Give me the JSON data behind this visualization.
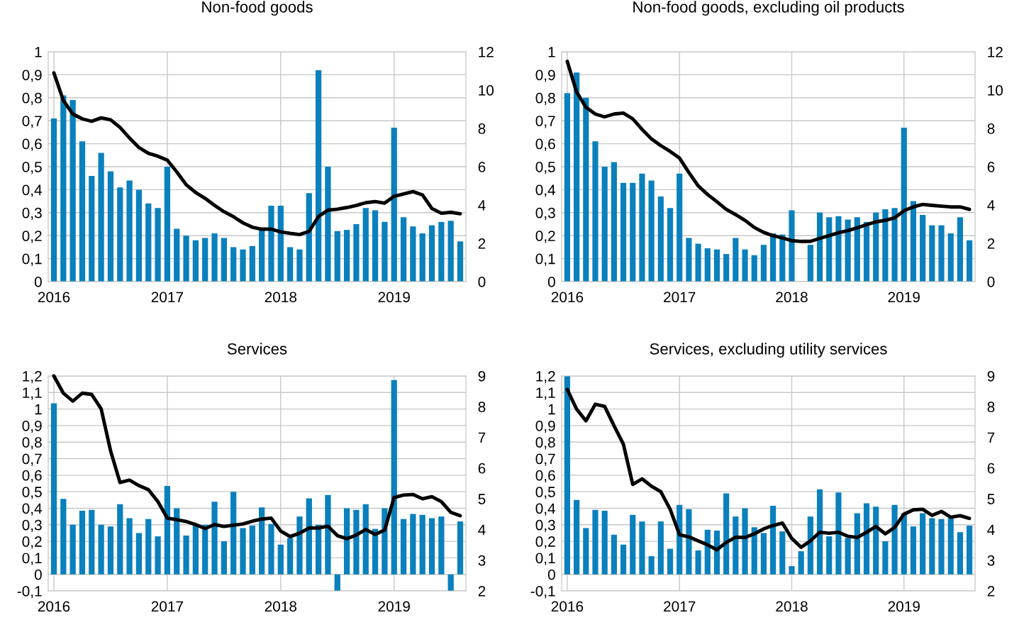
{
  "chart_data": [
    {
      "type": "bar",
      "title": "Non-food goods",
      "categories": [
        "2016",
        null,
        null,
        null,
        null,
        null,
        null,
        null,
        null,
        null,
        null,
        null,
        "2017",
        null,
        null,
        null,
        null,
        null,
        null,
        null,
        null,
        null,
        null,
        null,
        "2018",
        null,
        null,
        null,
        null,
        null,
        null,
        null,
        null,
        null,
        null,
        null,
        "2019",
        null,
        null,
        null,
        null,
        null,
        null,
        null
      ],
      "series": [
        {
          "type": "bar",
          "color": "#0a80bd",
          "values": [
            0.71,
            0.81,
            0.79,
            0.61,
            0.46,
            0.56,
            0.48,
            0.41,
            0.44,
            0.4,
            0.34,
            0.32,
            0.5,
            0.23,
            0.2,
            0.18,
            0.19,
            0.21,
            0.19,
            0.15,
            0.14,
            0.155,
            0.23,
            0.33,
            0.33,
            0.15,
            0.14,
            0.385,
            0.92,
            0.5,
            0.22,
            0.225,
            0.25,
            0.32,
            0.31,
            0.26,
            0.67,
            0.28,
            0.24,
            0.21,
            0.245,
            0.26,
            0.265,
            0.175
          ]
        },
        {
          "type": "line",
          "axis": "y2",
          "color": "#000000",
          "values": [
            10.9,
            9.46,
            8.75,
            8.5,
            8.37,
            8.55,
            8.45,
            8.05,
            7.5,
            7.0,
            6.7,
            6.55,
            6.34,
            5.73,
            5.06,
            4.65,
            4.35,
            3.98,
            3.65,
            3.39,
            3.07,
            2.84,
            2.74,
            2.74,
            2.6,
            2.52,
            2.46,
            2.62,
            3.4,
            3.73,
            3.78,
            3.87,
            3.98,
            4.12,
            4.18,
            4.1,
            4.45,
            4.58,
            4.7,
            4.53,
            3.82,
            3.57,
            3.62,
            3.54
          ]
        }
      ],
      "ylim": [
        0,
        1
      ],
      "yticks": [
        0,
        {
          "value": 0.1,
          "label": "0,1"
        },
        {
          "value": 0.2,
          "label": "0,2"
        },
        {
          "value": 0.3,
          "label": "0,3"
        },
        {
          "value": 0.4,
          "label": "0,4"
        },
        {
          "value": 0.5,
          "label": "0,5"
        },
        {
          "value": 0.6,
          "label": "0,6"
        },
        {
          "value": 0.7,
          "label": "0,7"
        },
        {
          "value": 0.8,
          "label": "0,8"
        },
        {
          "value": 0.9,
          "label": "0,9"
        },
        1
      ],
      "y2lim": [
        0,
        12
      ],
      "y2ticks": [
        0,
        2,
        4,
        6,
        8,
        10,
        12
      ],
      "grid": true
    },
    {
      "type": "bar",
      "title": "Non-food goods, excluding oil products",
      "categories": [
        "2016",
        null,
        null,
        null,
        null,
        null,
        null,
        null,
        null,
        null,
        null,
        null,
        "2017",
        null,
        null,
        null,
        null,
        null,
        null,
        null,
        null,
        null,
        null,
        null,
        "2018",
        null,
        null,
        null,
        null,
        null,
        null,
        null,
        null,
        null,
        null,
        null,
        "2019",
        null,
        null,
        null,
        null,
        null,
        null,
        null
      ],
      "series": [
        {
          "type": "bar",
          "color": "#0a80bd",
          "values": [
            0.82,
            0.91,
            0.8,
            0.61,
            0.5,
            0.52,
            0.43,
            0.43,
            0.47,
            0.44,
            0.37,
            0.32,
            0.47,
            0.19,
            0.165,
            0.145,
            0.14,
            0.12,
            0.19,
            0.14,
            0.115,
            0.16,
            0.21,
            0.205,
            0.31,
            null,
            0.16,
            0.3,
            0.28,
            0.285,
            0.27,
            0.28,
            0.26,
            0.3,
            0.315,
            0.32,
            0.67,
            0.35,
            0.29,
            0.245,
            0.245,
            0.21,
            0.28,
            0.18
          ]
        },
        {
          "type": "line",
          "axis": "y2",
          "color": "#000000",
          "values": [
            11.5,
            9.9,
            9.1,
            8.75,
            8.6,
            8.75,
            8.8,
            8.5,
            7.95,
            7.45,
            7.1,
            6.8,
            6.45,
            5.7,
            5.0,
            4.55,
            4.17,
            3.77,
            3.5,
            3.2,
            2.83,
            2.57,
            2.4,
            2.28,
            2.14,
            2.1,
            2.1,
            2.26,
            2.4,
            2.55,
            2.66,
            2.81,
            2.97,
            3.12,
            3.2,
            3.33,
            3.7,
            3.9,
            4.03,
            3.98,
            3.94,
            3.9,
            3.9,
            3.77
          ]
        }
      ],
      "ylim": [
        0,
        1
      ],
      "yticks": [
        0,
        {
          "value": 0.1,
          "label": "0,1"
        },
        {
          "value": 0.2,
          "label": "0,2"
        },
        {
          "value": 0.3,
          "label": "0,3"
        },
        {
          "value": 0.4,
          "label": "0,4"
        },
        {
          "value": 0.5,
          "label": "0,5"
        },
        {
          "value": 0.6,
          "label": "0,6"
        },
        {
          "value": 0.7,
          "label": "0,7"
        },
        {
          "value": 0.8,
          "label": "0,8"
        },
        {
          "value": 0.9,
          "label": "0,9"
        },
        1
      ],
      "y2lim": [
        0,
        12
      ],
      "y2ticks": [
        0,
        2,
        4,
        6,
        8,
        10,
        12
      ],
      "grid": true
    },
    {
      "type": "bar",
      "title": "Services",
      "categories": [
        "2016",
        null,
        null,
        null,
        null,
        null,
        null,
        null,
        null,
        null,
        null,
        null,
        "2017",
        null,
        null,
        null,
        null,
        null,
        null,
        null,
        null,
        null,
        null,
        null,
        "2018",
        null,
        null,
        null,
        null,
        null,
        null,
        null,
        null,
        null,
        null,
        null,
        "2019",
        null,
        null,
        null,
        null,
        null,
        null,
        null
      ],
      "series": [
        {
          "type": "bar",
          "color": "#0a80bd",
          "values": [
            1.035,
            0.457,
            0.3,
            0.385,
            0.39,
            0.3,
            0.29,
            0.425,
            0.34,
            0.25,
            0.335,
            0.23,
            0.535,
            0.4,
            0.235,
            0.3,
            0.3,
            0.44,
            0.2,
            0.5,
            0.28,
            0.295,
            0.405,
            0.305,
            0.18,
            0.22,
            0.35,
            0.46,
            0.3,
            0.48,
            -0.1,
            0.4,
            0.39,
            0.425,
            0.275,
            0.4,
            1.175,
            0.335,
            0.365,
            0.36,
            0.34,
            0.35,
            -0.1,
            0.32
          ]
        },
        {
          "type": "line",
          "axis": "y2",
          "color": "#000000",
          "values": [
            9.0,
            8.44,
            8.18,
            8.44,
            8.4,
            7.93,
            6.56,
            5.53,
            5.61,
            5.43,
            5.3,
            4.91,
            4.37,
            4.32,
            4.26,
            4.16,
            4.03,
            4.16,
            4.1,
            4.14,
            4.18,
            4.27,
            4.34,
            4.37,
            3.95,
            3.77,
            3.88,
            4.05,
            4.05,
            4.11,
            3.8,
            3.7,
            3.82,
            4.0,
            3.84,
            3.98,
            5.04,
            5.12,
            5.14,
            5.0,
            5.07,
            4.91,
            4.56,
            4.45
          ]
        }
      ],
      "ylim": [
        -0.1,
        1.2
      ],
      "yticks": [
        {
          "value": -0.1,
          "label": "-0,1"
        },
        0,
        {
          "value": 0.1,
          "label": "0,1"
        },
        {
          "value": 0.2,
          "label": "0,2"
        },
        {
          "value": 0.3,
          "label": "0,3"
        },
        {
          "value": 0.4,
          "label": "0,4"
        },
        {
          "value": 0.5,
          "label": "0,5"
        },
        {
          "value": 0.6,
          "label": "0,6"
        },
        {
          "value": 0.7,
          "label": "0,7"
        },
        {
          "value": 0.8,
          "label": "0,8"
        },
        {
          "value": 0.9,
          "label": "0,9"
        },
        1,
        {
          "value": 1.1,
          "label": "1,1"
        },
        {
          "value": 1.2,
          "label": "1,2"
        }
      ],
      "y2lim": [
        2,
        9
      ],
      "y2ticks": [
        2,
        3,
        4,
        5,
        6,
        7,
        8,
        9
      ],
      "grid": true
    },
    {
      "type": "bar",
      "title": "Services, excluding utility services",
      "categories": [
        "2016",
        null,
        null,
        null,
        null,
        null,
        null,
        null,
        null,
        null,
        null,
        null,
        "2017",
        null,
        null,
        null,
        null,
        null,
        null,
        null,
        null,
        null,
        null,
        null,
        "2018",
        null,
        null,
        null,
        null,
        null,
        null,
        null,
        null,
        null,
        null,
        null,
        "2019",
        null,
        null,
        null,
        null,
        null,
        null,
        null
      ],
      "series": [
        {
          "type": "bar",
          "color": "#0a80bd",
          "values": [
            1.2,
            0.45,
            0.28,
            0.39,
            0.385,
            0.24,
            0.18,
            0.36,
            0.32,
            0.11,
            0.32,
            0.155,
            0.42,
            0.395,
            0.145,
            0.27,
            0.265,
            0.49,
            0.35,
            0.4,
            0.285,
            0.25,
            0.415,
            0.26,
            0.05,
            0.14,
            0.35,
            0.515,
            0.23,
            0.495,
            0.22,
            0.37,
            0.43,
            0.41,
            0.2,
            0.42,
            0.37,
            0.29,
            0.37,
            0.34,
            0.335,
            0.34,
            0.255,
            0.295
          ]
        },
        {
          "type": "line",
          "axis": "y2",
          "color": "#000000",
          "values": [
            8.56,
            7.92,
            7.54,
            8.08,
            8.01,
            7.38,
            6.78,
            5.47,
            5.65,
            5.41,
            5.23,
            4.66,
            3.83,
            3.76,
            3.63,
            3.5,
            3.34,
            3.58,
            3.75,
            3.74,
            3.86,
            4.02,
            4.13,
            4.21,
            3.71,
            3.42,
            3.63,
            3.91,
            3.88,
            3.91,
            3.78,
            3.74,
            3.91,
            4.1,
            3.86,
            4.07,
            4.5,
            4.64,
            4.66,
            4.46,
            4.59,
            4.4,
            4.45,
            4.36
          ]
        }
      ],
      "ylim": [
        -0.1,
        1.2
      ],
      "yticks": [
        {
          "value": -0.1,
          "label": "-0,1"
        },
        0,
        {
          "value": 0.1,
          "label": "0,1"
        },
        {
          "value": 0.2,
          "label": "0,2"
        },
        {
          "value": 0.3,
          "label": "0,3"
        },
        {
          "value": 0.4,
          "label": "0,4"
        },
        {
          "value": 0.5,
          "label": "0,5"
        },
        {
          "value": 0.6,
          "label": "0,6"
        },
        {
          "value": 0.7,
          "label": "0,7"
        },
        {
          "value": 0.8,
          "label": "0,8"
        },
        {
          "value": 0.9,
          "label": "0,9"
        },
        1,
        {
          "value": 1.1,
          "label": "1,1"
        },
        {
          "value": 1.2,
          "label": "1,2"
        }
      ],
      "y2lim": [
        2,
        9
      ],
      "y2ticks": [
        2,
        3,
        4,
        5,
        6,
        7,
        8,
        9
      ],
      "grid": true
    }
  ]
}
